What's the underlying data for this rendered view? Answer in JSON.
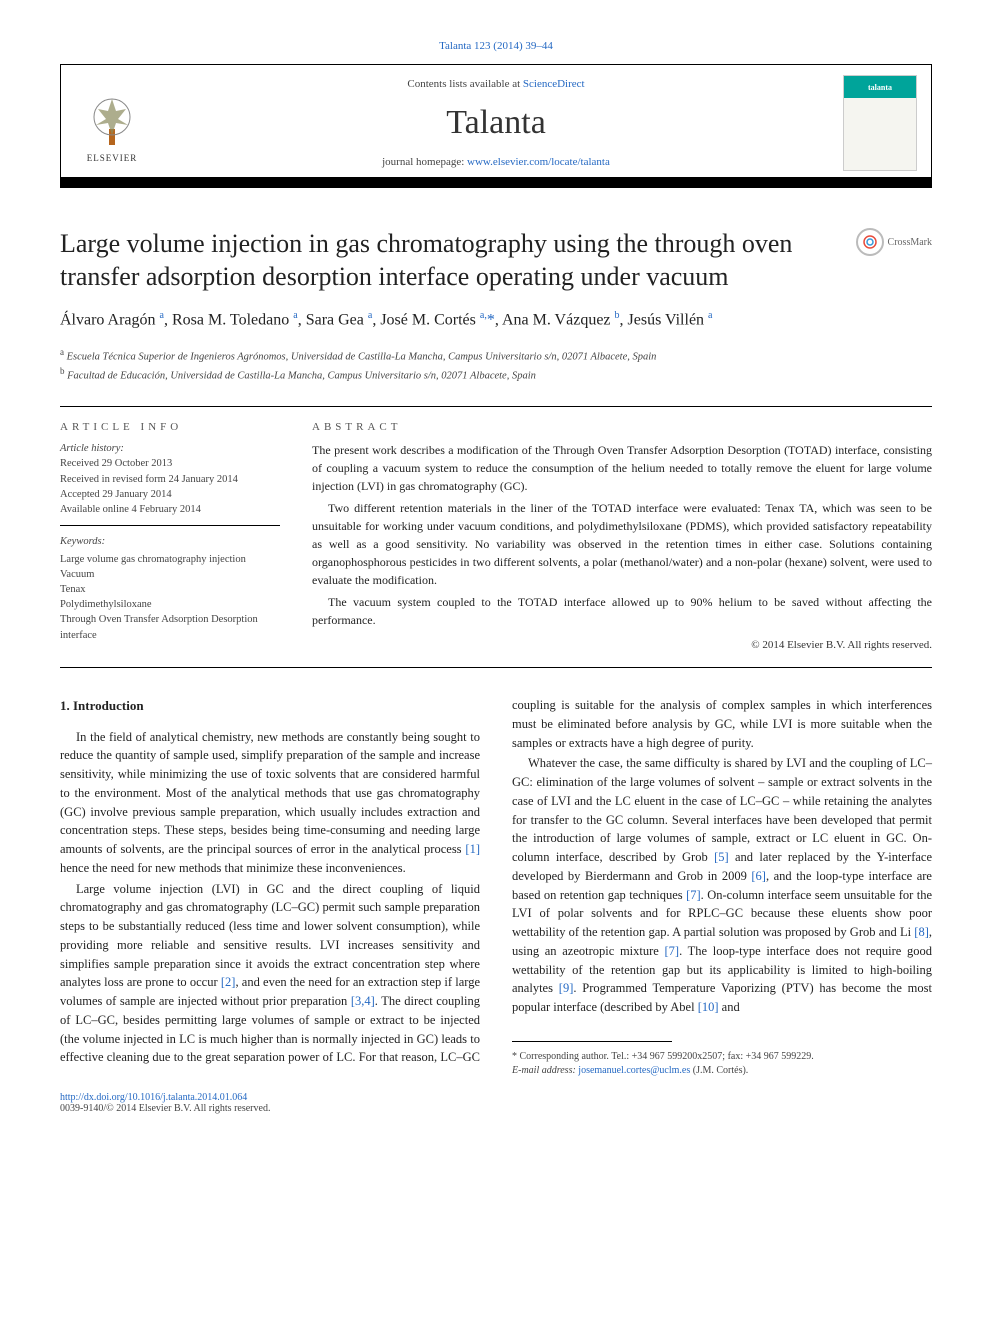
{
  "citation": "Talanta 123 (2014) 39–44",
  "header": {
    "contents_prefix": "Contents lists available at ",
    "contents_link": "ScienceDirect",
    "journal": "Talanta",
    "homepage_prefix": "journal homepage: ",
    "homepage_url": "www.elsevier.com/locate/talanta",
    "publisher": "ELSEVIER",
    "cover_brand": "talanta"
  },
  "crossmark": "CrossMark",
  "title": "Large volume injection in gas chromatography using the through oven transfer adsorption desorption interface operating under vacuum",
  "authors_html": "Álvaro Aragón <sup>a</sup>, Rosa M. Toledano <sup>a</sup>, Sara Gea <sup>a</sup>, José M. Cortés <sup>a,</sup><span class='star'>*</span>, Ana M. Vázquez <sup>b</sup>, Jesús Villén <sup>a</sup>",
  "affiliations": [
    {
      "sup": "a",
      "text": "Escuela Técnica Superior de Ingenieros Agrónomos, Universidad de Castilla-La Mancha, Campus Universitario s/n, 02071 Albacete, Spain"
    },
    {
      "sup": "b",
      "text": "Facultad de Educación, Universidad de Castilla-La Mancha, Campus Universitario s/n, 02071 Albacete, Spain"
    }
  ],
  "article_info_label": "article info",
  "abstract_label": "abstract",
  "history": {
    "label": "Article history:",
    "received": "Received 29 October 2013",
    "revised": "Received in revised form 24 January 2014",
    "accepted": "Accepted 29 January 2014",
    "online": "Available online 4 February 2014"
  },
  "keywords": {
    "label": "Keywords:",
    "items": [
      "Large volume gas chromatography injection",
      "Vacuum",
      "Tenax",
      "Polydimethylsiloxane",
      "Through Oven Transfer Adsorption Desorption interface"
    ]
  },
  "abstract_paragraphs": [
    "The present work describes a modification of the Through Oven Transfer Adsorption Desorption (TOTAD) interface, consisting of coupling a vacuum system to reduce the consumption of the helium needed to totally remove the eluent for large volume injection (LVI) in gas chromatography (GC).",
    "Two different retention materials in the liner of the TOTAD interface were evaluated: Tenax TA, which was seen to be unsuitable for working under vacuum conditions, and polydimethylsiloxane (PDMS), which provided satisfactory repeatability as well as a good sensitivity. No variability was observed in the retention times in either case. Solutions containing organophosphorous pesticides in two different solvents, a polar (methanol/water) and a non-polar (hexane) solvent, were used to evaluate the modification.",
    "The vacuum system coupled to the TOTAD interface allowed up to 90% helium to be saved without affecting the performance."
  ],
  "copyright": "© 2014 Elsevier B.V. All rights reserved.",
  "section_heading": "1.  Introduction",
  "body_paragraphs": [
    "In the field of analytical chemistry, new methods are constantly being sought to reduce the quantity of sample used, simplify preparation of the sample and increase sensitivity, while minimizing the use of toxic solvents that are considered harmful to the environment. Most of the analytical methods that use gas chromatography (GC) involve previous sample preparation, which usually includes extraction and concentration steps. These steps, besides being time-consuming and needing large amounts of solvents, are the principal sources of error in the analytical process <a class='ref' href='#'>[1]</a> hence the need for new methods that minimize these inconveniences.",
    "Large volume injection (LVI) in GC and the direct coupling of liquid chromatography and gas chromatography (LC–GC) permit such sample preparation steps to be substantially reduced (less time and lower solvent consumption), while providing more reliable and sensitive results. LVI increases sensitivity and simplifies sample preparation since it avoids the extract concentration step where analytes loss are prone to occur <a class='ref' href='#'>[2]</a>, and even the need for an extraction step if large volumes of sample are injected without prior preparation <a class='ref' href='#'>[3,4]</a>. The direct coupling of LC–GC, besides permitting large volumes of sample or extract to be injected (the volume injected in LC is much higher than is normally injected in GC) leads to effective cleaning due to the great separation power of LC. For that reason, LC–GC coupling is suitable for the analysis of complex samples in which interferences must be eliminated before analysis by GC, while LVI is more suitable when the samples or extracts have a high degree of purity.",
    "Whatever the case, the same difficulty is shared by LVI and the coupling of LC–GC: elimination of the large volumes of solvent – sample or extract solvents in the case of LVI and the LC eluent in the case of LC–GC – while retaining the analytes for transfer to the GC column. Several interfaces have been developed that permit the introduction of large volumes of sample, extract or LC eluent in GC. On-column interface, described by Grob <a class='ref' href='#'>[5]</a> and later replaced by the Y-interface developed by Bierdermann and Grob in 2009 <a class='ref' href='#'>[6]</a>, and the loop-type interface are based on retention gap techniques <a class='ref' href='#'>[7]</a>. On-column interface seem unsuitable for the LVI of polar solvents and for RPLC–GC because these eluents show poor wettability of the retention gap. A partial solution was proposed by Grob and Li <a class='ref' href='#'>[8]</a>, using an azeotropic mixture <a class='ref' href='#'>[7]</a>. The loop-type interface does not require good wettability of the retention gap but its applicability is limited to high-boiling analytes <a class='ref' href='#'>[9]</a>. Programmed Temperature Vaporizing (PTV) has become the most popular interface (described by Abel <a class='ref' href='#'>[10]</a> and"
  ],
  "footer": {
    "corresponding": "* Corresponding author. Tel.: +34 967 599200x2507; fax: +34 967 599229.",
    "email_label": "E-mail address: ",
    "email": "josemanuel.cortes@uclm.es",
    "email_suffix": " (J.M. Cortés).",
    "doi": "http://dx.doi.org/10.1016/j.talanta.2014.01.064",
    "issn": "0039-9140/© 2014 Elsevier B.V. All rights reserved."
  },
  "colors": {
    "link": "#2569c3",
    "text": "#222222",
    "cover_accent": "#00a49a"
  }
}
